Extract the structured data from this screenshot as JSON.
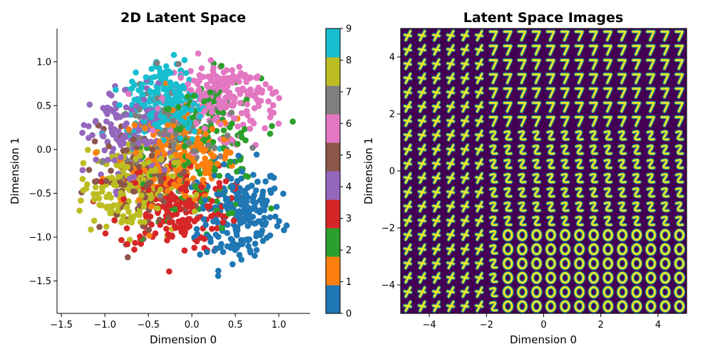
{
  "chart_data": [
    {
      "type": "scatter",
      "title": "2D Latent Space",
      "xlabel": "Dimension 0",
      "ylabel": "Dimension 1",
      "xlim": [
        -1.55,
        1.36
      ],
      "ylim": [
        -1.87,
        1.38
      ],
      "xticks": [
        "−1.5",
        "−1.0",
        "−0.5",
        "0.0",
        "0.5",
        "1.0"
      ],
      "yticks": [
        "−1.5",
        "−1.0",
        "−0.5",
        "0.0",
        "0.5",
        "1.0"
      ],
      "grid": false,
      "colorbar": {
        "ticks": [
          "0",
          "1",
          "2",
          "3",
          "4",
          "5",
          "6",
          "7",
          "8",
          "9"
        ],
        "colors": [
          "#1f77b4",
          "#ff7f0e",
          "#2ca02c",
          "#d62728",
          "#9467bd",
          "#8c564b",
          "#e377c2",
          "#7f7f7f",
          "#bcbd22",
          "#17becf"
        ]
      },
      "clusters": [
        {
          "label": 0,
          "center": [
            0.55,
            -0.75
          ],
          "spread": [
            0.24,
            0.3
          ],
          "count": 220
        },
        {
          "label": 1,
          "center": [
            -0.15,
            -0.1
          ],
          "spread": [
            0.33,
            0.26
          ],
          "count": 200
        },
        {
          "label": 2,
          "center": [
            0.15,
            0.0
          ],
          "spread": [
            0.32,
            0.4
          ],
          "count": 170
        },
        {
          "label": 3,
          "center": [
            -0.2,
            -0.65
          ],
          "spread": [
            0.32,
            0.26
          ],
          "count": 200
        },
        {
          "label": 4,
          "center": [
            -0.72,
            0.15
          ],
          "spread": [
            0.24,
            0.3
          ],
          "count": 150
        },
        {
          "label": 5,
          "center": [
            -0.6,
            -0.35
          ],
          "spread": [
            0.3,
            0.28
          ],
          "count": 110
        },
        {
          "label": 6,
          "center": [
            0.4,
            0.6
          ],
          "spread": [
            0.3,
            0.22
          ],
          "count": 220
        },
        {
          "label": 7,
          "center": [
            -0.25,
            0.15
          ],
          "spread": [
            0.32,
            0.32
          ],
          "count": 90
        },
        {
          "label": 8,
          "center": [
            -0.75,
            -0.45
          ],
          "spread": [
            0.28,
            0.25
          ],
          "count": 180
        },
        {
          "label": 9,
          "center": [
            -0.3,
            0.55
          ],
          "spread": [
            0.22,
            0.25
          ],
          "count": 220
        }
      ]
    },
    {
      "type": "heatmap",
      "title": "Latent Space Images",
      "xlabel": "Dimension 0",
      "ylabel": "Dimension 1",
      "xlim": [
        -5,
        5
      ],
      "ylim": [
        -5,
        5
      ],
      "xticks": [
        "−4",
        "−2",
        "0",
        "2",
        "4"
      ],
      "yticks": [
        "−4",
        "−2",
        "0",
        "2",
        "4"
      ],
      "grid_size": 20,
      "colormap": [
        "#440154",
        "#21918c",
        "#fde725"
      ],
      "background": "#440154"
    }
  ]
}
